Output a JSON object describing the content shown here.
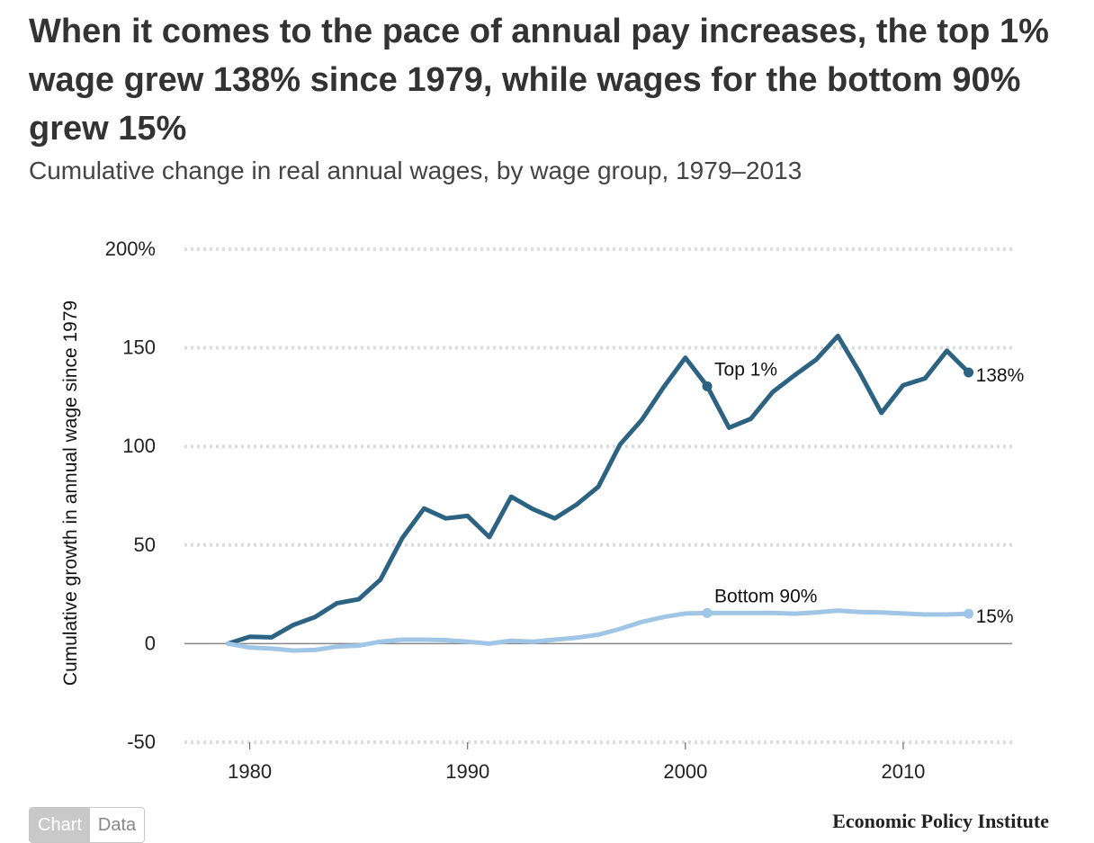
{
  "header": {
    "title": "When it comes to the pace of annual pay increases, the top 1% wage grew 138% since 1979, while wages for the bottom 90% grew 15%",
    "subtitle": "Cumulative change in real annual wages, by wage group, 1979–2013"
  },
  "colors": {
    "top1": "#2c6282",
    "bottom90": "#9fc6e7",
    "grid": "#dddddd",
    "zero": "#888888"
  },
  "chart_data": {
    "type": "line",
    "title": "Cumulative change in real annual wages, by wage group, 1979–2013",
    "xlabel": "",
    "ylabel": "Cumulative growth in annual wage since 1979",
    "xlim": [
      1977,
      2015
    ],
    "ylim": [
      -50,
      200
    ],
    "xticks": [
      1980,
      1990,
      2000,
      2010
    ],
    "yticks": [
      200,
      150,
      100,
      50,
      0,
      -50
    ],
    "ytick_labels": [
      "200%",
      "150",
      "100",
      "50",
      "0",
      "-50"
    ],
    "grid": true,
    "x": [
      1979,
      1980,
      1981,
      1982,
      1983,
      1984,
      1985,
      1986,
      1987,
      1988,
      1989,
      1990,
      1991,
      1992,
      1993,
      1994,
      1995,
      1996,
      1997,
      1998,
      1999,
      2000,
      2001,
      2002,
      2003,
      2004,
      2005,
      2006,
      2007,
      2008,
      2009,
      2010,
      2011,
      2012,
      2013
    ],
    "series": [
      {
        "name": "Top 1%",
        "label": "Top 1%",
        "end_label": "138%",
        "marker_year": 2001,
        "values": [
          0,
          3.5,
          3.2,
          9.5,
          13.5,
          20.5,
          22.5,
          32.5,
          53.5,
          68.5,
          63.5,
          64.8,
          54,
          74.5,
          68.2,
          63.5,
          70.5,
          79.5,
          101,
          113.5,
          130,
          145,
          130.5,
          109.5,
          114,
          127.5,
          136,
          144,
          156,
          137.5,
          117,
          131,
          134.5,
          148.5,
          137.5
        ]
      },
      {
        "name": "Bottom 90%",
        "label": "Bottom 90%",
        "end_label": "15%",
        "marker_year": 2001,
        "values": [
          0,
          -2,
          -2.5,
          -3.5,
          -3.2,
          -1.5,
          -1,
          1,
          2,
          2,
          1.8,
          1,
          0,
          1.5,
          1,
          2,
          3,
          4.5,
          7.5,
          11,
          13.5,
          15.3,
          15.5,
          15.5,
          15.5,
          15.6,
          15.2,
          15.8,
          16.8,
          16,
          15.8,
          15.3,
          14.8,
          14.8,
          15.2
        ]
      }
    ]
  },
  "tabs": {
    "chart": "Chart",
    "data": "Data"
  },
  "credit": "Economic Policy Institute"
}
